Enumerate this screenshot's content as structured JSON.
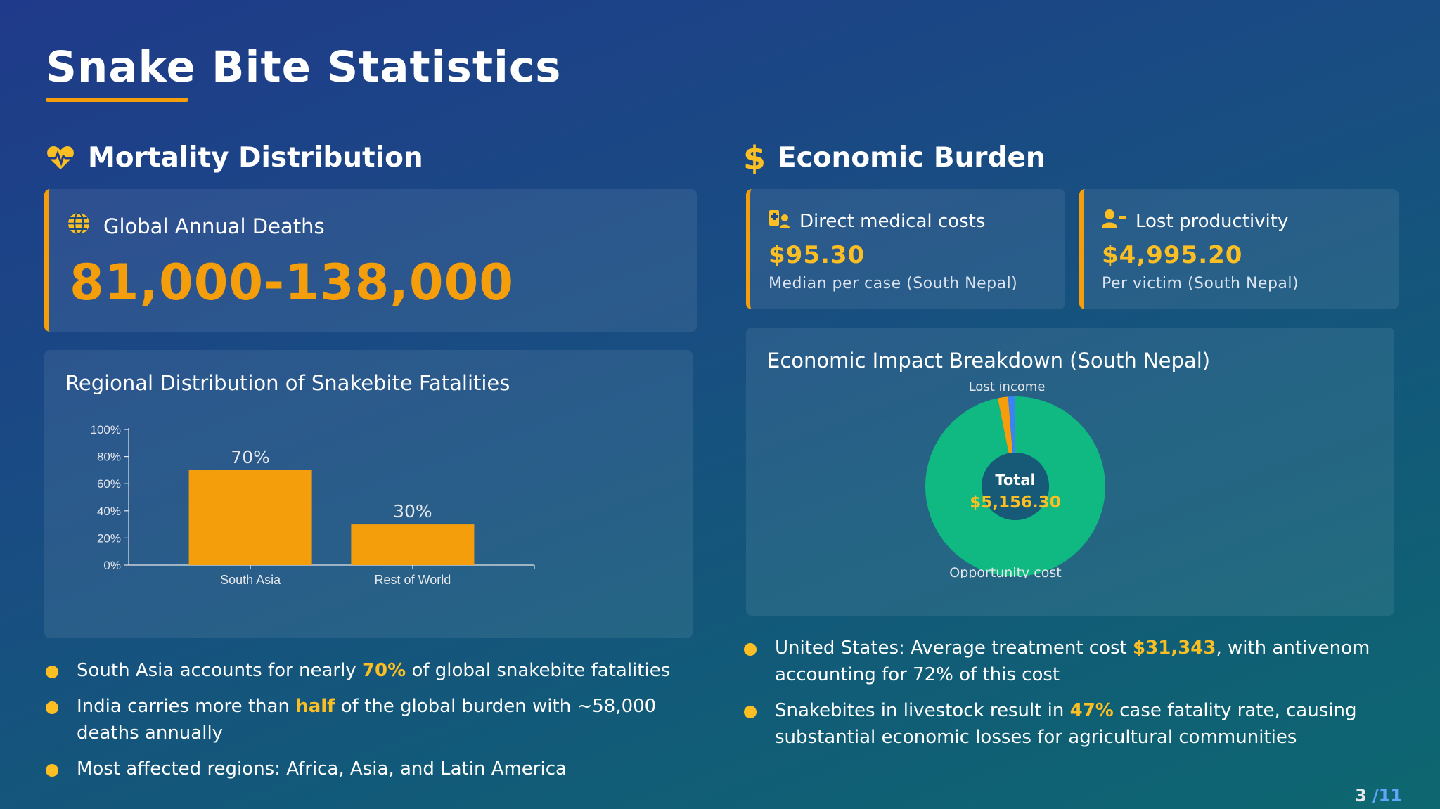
{
  "title": "Snake Bite Statistics",
  "mortality": {
    "heading": "Mortality Distribution",
    "deaths_label": "Global Annual Deaths",
    "deaths_value": "81,000-138,000"
  },
  "economic": {
    "heading": "Economic Burden",
    "cards": [
      {
        "label": "Direct medical costs",
        "value": "$95.30",
        "sub": "Median per case (South Nepal)"
      },
      {
        "label": "Lost productivity",
        "value": "$4,995.20",
        "sub": "Per victim (South Nepal)"
      }
    ]
  },
  "chart_data": [
    {
      "type": "bar",
      "title": "Regional Distribution of Snakebite Fatalities",
      "categories": [
        "South Asia",
        "Rest of World"
      ],
      "values": [
        70,
        30
      ],
      "data_labels": [
        "70%",
        "30%"
      ],
      "yticks": [
        "0%",
        "20%",
        "40%",
        "60%",
        "80%",
        "100%"
      ],
      "ylim": [
        0,
        100
      ],
      "color": "#f59e0b"
    },
    {
      "type": "pie",
      "title": "Economic Impact Breakdown (South Nepal)",
      "center_label": "Total",
      "center_value": "$5,156.30",
      "slices": [
        {
          "label": "Opportunity cost",
          "value": 4995.2,
          "color": "#10b981"
        },
        {
          "label": "Lost income",
          "value": 95.3,
          "color": "#f59e0b"
        },
        {
          "label": "",
          "value": 65.8,
          "color": "#3b82f6"
        }
      ],
      "visible_labels": [
        "Lost income",
        "Opportunity cost"
      ]
    }
  ],
  "mortality_bullets": [
    {
      "pre": "South Asia accounts for nearly ",
      "hl": "70%",
      "post": " of global snakebite fatalities"
    },
    {
      "pre": "India carries more than ",
      "hl": "half",
      "post": " of the global burden with ~58,000 deaths annually"
    },
    {
      "pre": "Most affected regions: Africa, Asia, and Latin America",
      "hl": "",
      "post": ""
    }
  ],
  "economic_bullets": [
    {
      "pre": "United States: Average treatment cost ",
      "hl": "$31,343",
      "post": ", with antivenom accounting for 72% of this cost"
    },
    {
      "pre": "Snakebites in livestock result in ",
      "hl": "47%",
      "post": " case fatality rate, causing substantial economic losses for agricultural communities"
    }
  ],
  "pager": {
    "current": "3",
    "total": "/11"
  },
  "colors": {
    "accent": "#f59e0b",
    "highlight": "#fbbf24",
    "green": "#10b981",
    "blue": "#3b82f6"
  }
}
